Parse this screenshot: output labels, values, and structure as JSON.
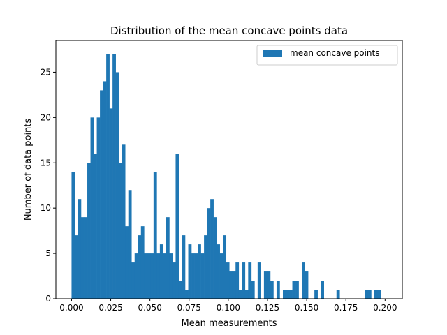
{
  "chart_data": {
    "type": "bar",
    "title": "Distribution of the mean concave points data",
    "xlabel": "Mean measurements",
    "ylabel": "Number of data points",
    "xlim": [
      -0.01,
      0.211
    ],
    "ylim": [
      0,
      28.5
    ],
    "xticks": [
      0.0,
      0.025,
      0.05,
      0.075,
      0.1,
      0.125,
      0.15,
      0.175,
      0.2
    ],
    "xtick_labels": [
      "0.000",
      "0.025",
      "0.050",
      "0.075",
      "0.100",
      "0.125",
      "0.150",
      "0.175",
      "0.200"
    ],
    "yticks": [
      0,
      5,
      10,
      15,
      20,
      25
    ],
    "ytick_labels": [
      "0",
      "5",
      "10",
      "15",
      "20",
      "25"
    ],
    "legend": {
      "position": "top-right",
      "entries": [
        "mean concave points"
      ]
    },
    "grid": false,
    "color": "#1f77b4",
    "series": [
      {
        "name": "mean concave points",
        "bin_start": 0.0,
        "bin_width": 0.002012,
        "values": [
          14,
          7,
          11,
          9,
          9,
          15,
          20,
          16,
          20,
          23,
          24,
          27,
          21,
          27,
          25,
          15,
          17,
          8,
          12,
          4,
          5,
          7,
          8,
          5,
          5,
          5,
          14,
          5,
          6,
          5,
          9,
          5,
          4,
          16,
          2,
          7,
          1,
          6,
          5,
          5,
          6,
          5,
          7,
          10,
          11,
          9,
          6,
          5,
          7,
          4,
          3,
          3,
          4,
          1,
          4,
          1,
          4,
          2,
          0,
          4,
          0,
          3,
          3,
          2,
          0,
          2,
          0,
          1,
          1,
          1,
          2,
          2,
          0,
          4,
          3,
          0,
          0,
          1,
          0,
          2,
          0,
          0,
          0,
          0,
          1,
          0,
          0,
          0,
          0,
          0,
          0,
          0,
          0,
          1,
          1,
          0,
          1,
          1,
          0,
          0
        ]
      }
    ]
  }
}
